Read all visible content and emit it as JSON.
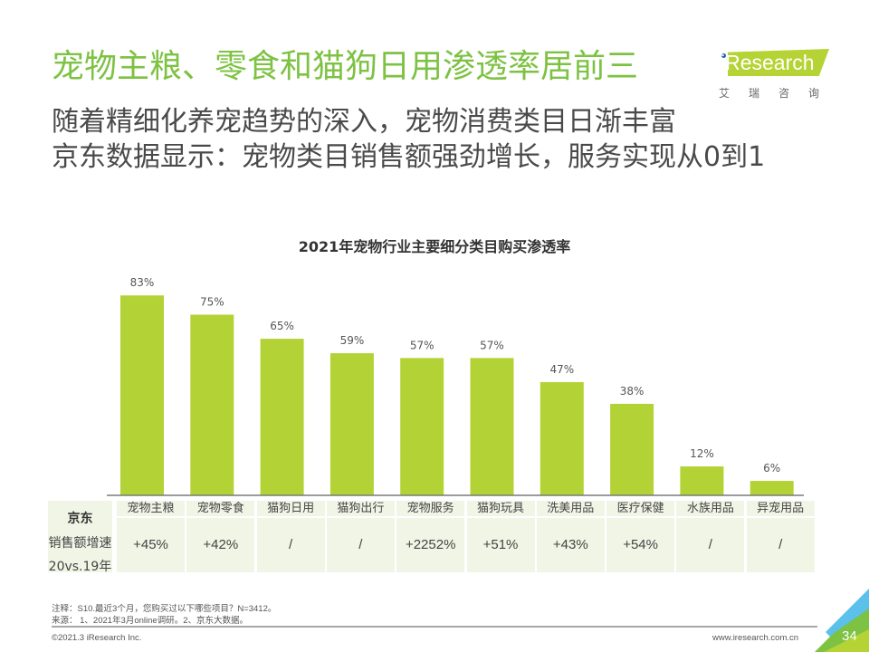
{
  "header": {
    "title": "宠物主粮、零食和猫狗日用渗透率居前三",
    "subtitle_lines": [
      "随着精细化养宠趋势的深入，宠物消费类目日渐丰富",
      "京东数据显示：宠物类目销售额强劲增长，服务实现从0到1"
    ]
  },
  "logo": {
    "text": "iResearch",
    "cn": "艾瑞咨询",
    "brand_color": "#b5d334"
  },
  "chart_data": {
    "type": "bar",
    "title": "2021年宠物行业主要细分类目购买渗透率",
    "categories": [
      "宠物主粮",
      "宠物零食",
      "猫狗日用",
      "猫狗出行",
      "宠物服务",
      "猫狗玩具",
      "洗美用品",
      "医疗保健",
      "水族用品",
      "异宠用品"
    ],
    "values": [
      83,
      75,
      65,
      59,
      57,
      57,
      47,
      38,
      12,
      6
    ],
    "value_labels": [
      "83%",
      "75%",
      "65%",
      "59%",
      "57%",
      "57%",
      "47%",
      "38%",
      "12%",
      "6%"
    ],
    "unit": "%",
    "xlabel": "",
    "ylabel": "",
    "ylim": [
      0,
      83
    ],
    "grid": false,
    "bar_color": "#b3d235",
    "legend": "none"
  },
  "table": {
    "row_header": {
      "platform": "京东",
      "metric": "销售额增速",
      "period": "20vs.19年"
    },
    "growth": [
      "+45%",
      "+42%",
      "/",
      "/",
      "+2252%",
      "+51%",
      "+43%",
      "+54%",
      "/",
      "/"
    ]
  },
  "footer": {
    "note": "注释：S10.最近3个月，您购买过以下哪些项目？N=3412。",
    "source": "来源：  1、2021年3月online调研。2、京东大数据。",
    "copyright": "©2021.3 iResearch Inc.",
    "website": "www.iresearch.com.cn",
    "page_number": "34"
  }
}
